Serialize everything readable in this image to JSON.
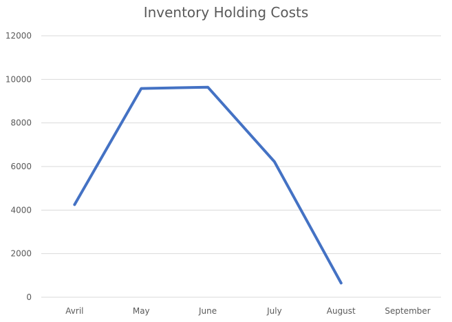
{
  "chart_data": {
    "type": "line",
    "title": "Inventory Holding Costs",
    "xlabel": "",
    "ylabel": "",
    "categories": [
      "Avril",
      "May",
      "June",
      "July",
      "August",
      "September"
    ],
    "series": [
      {
        "values": [
          4250,
          9580,
          9640,
          6220,
          650,
          null
        ],
        "color": "#4472C4"
      }
    ],
    "ylim": [
      0,
      12000
    ],
    "yticks": [
      0,
      2000,
      4000,
      6000,
      8000,
      10000,
      12000
    ],
    "grid": true,
    "legend": "none"
  }
}
